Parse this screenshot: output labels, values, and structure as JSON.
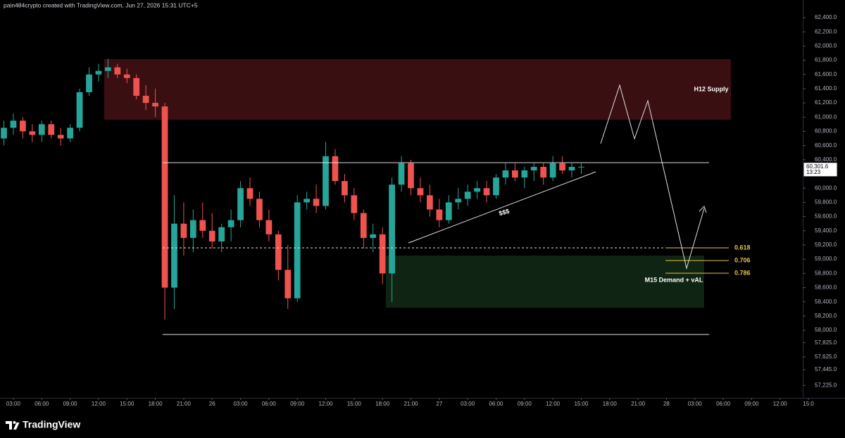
{
  "chart_data": {
    "type": "candlestick",
    "header": "pain484crypto created with TradingView.com, Jun 27, 2026 15:31 UTC+5",
    "brand": "TradingView",
    "up_color": "#26a69a",
    "down_color": "#ef5350",
    "xlim": [
      -1.41,
      83.4
    ],
    "ylim": [
      57049,
      62648
    ],
    "xticks": [
      {
        "value": 0,
        "label": "03:00"
      },
      {
        "value": 3,
        "label": "06:00"
      },
      {
        "value": 6,
        "label": "09:00"
      },
      {
        "value": 9,
        "label": "12:00"
      },
      {
        "value": 12,
        "label": "15:00"
      },
      {
        "value": 15,
        "label": "18:00"
      },
      {
        "value": 18,
        "label": "21:00"
      },
      {
        "value": 21,
        "label": "26"
      },
      {
        "value": 24,
        "label": "03:00"
      },
      {
        "value": 27,
        "label": "06:00"
      },
      {
        "value": 30,
        "label": "09:00"
      },
      {
        "value": 33,
        "label": "12:00"
      },
      {
        "value": 36,
        "label": "15:00"
      },
      {
        "value": 39,
        "label": "18:00"
      },
      {
        "value": 42,
        "label": "21:00"
      },
      {
        "value": 45,
        "label": "27"
      },
      {
        "value": 48,
        "label": "03:00"
      },
      {
        "value": 51,
        "label": "06:00"
      },
      {
        "value": 54,
        "label": "09:00"
      },
      {
        "value": 57,
        "label": "12:00"
      },
      {
        "value": 60,
        "label": "15:00"
      },
      {
        "value": 63,
        "label": "18:00"
      },
      {
        "value": 66,
        "label": "21:00"
      },
      {
        "value": 69,
        "label": "28"
      },
      {
        "value": 72,
        "label": "03:00"
      },
      {
        "value": 75,
        "label": "06:00"
      },
      {
        "value": 78,
        "label": "09:00"
      },
      {
        "value": 81,
        "label": "12:00"
      },
      {
        "value": 84,
        "label": "15:0"
      }
    ],
    "yticks": [
      {
        "value": 62400,
        "label": "62,400.0"
      },
      {
        "value": 62200,
        "label": "62,200.0"
      },
      {
        "value": 62000,
        "label": "62,000.0"
      },
      {
        "value": 61800,
        "label": "61,800.0"
      },
      {
        "value": 61600,
        "label": "61,600.0"
      },
      {
        "value": 61400,
        "label": "61,400.0"
      },
      {
        "value": 61200,
        "label": "61,200.0"
      },
      {
        "value": 61000,
        "label": "61,000.0"
      },
      {
        "value": 60800,
        "label": "60,800.0"
      },
      {
        "value": 60600,
        "label": "60,600.0"
      },
      {
        "value": 60400,
        "label": "60,400.0"
      },
      {
        "value": 60000,
        "label": "60,000.0"
      },
      {
        "value": 59800,
        "label": "59,800.0"
      },
      {
        "value": 59600,
        "label": "59,600.0"
      },
      {
        "value": 59400,
        "label": "59,400.0"
      },
      {
        "value": 59200,
        "label": "59,200.0"
      },
      {
        "value": 59000,
        "label": "59,000.0"
      },
      {
        "value": 58800,
        "label": "58,800.0"
      },
      {
        "value": 58600,
        "label": "58,600.0"
      },
      {
        "value": 58400,
        "label": "58,400.0"
      },
      {
        "value": 58200,
        "label": "58,200.0"
      },
      {
        "value": 58000,
        "label": "58,000.0"
      },
      {
        "value": 57825,
        "label": "57,825.0"
      },
      {
        "value": 57625,
        "label": "57,625.0"
      },
      {
        "value": 57445,
        "label": "57,445.0"
      },
      {
        "value": 57225,
        "label": "57,225.0"
      }
    ],
    "x": [
      -1,
      0,
      1,
      2,
      3,
      4,
      5,
      6,
      7,
      8,
      9,
      10,
      11,
      12,
      13,
      14,
      15,
      16,
      17,
      18,
      19,
      20,
      21,
      22,
      23,
      24,
      25,
      26,
      27,
      28,
      29,
      30,
      31,
      32,
      33,
      34,
      35,
      36,
      37,
      38,
      39,
      40,
      41,
      42,
      43,
      44,
      45,
      46,
      47,
      48,
      49,
      50,
      51,
      52,
      53,
      54,
      55,
      56,
      57,
      58,
      59,
      60
    ],
    "open": [
      60700,
      60850,
      60950,
      60800,
      60750,
      60900,
      60750,
      60700,
      60850,
      61350,
      61600,
      61650,
      61700,
      61600,
      61550,
      61300,
      61200,
      61150,
      58600,
      59500,
      59300,
      59550,
      59400,
      59250,
      59450,
      59550,
      60000,
      59850,
      59550,
      59350,
      58850,
      58450,
      59800,
      59850,
      59750,
      60450,
      60100,
      59900,
      59650,
      59300,
      59350,
      58800,
      60050,
      60350,
      60000,
      59900,
      59700,
      59550,
      59800,
      59850,
      59950,
      60000,
      59900,
      60150,
      60250,
      60150,
      60250,
      60300,
      60150,
      60350,
      60250,
      60300
    ],
    "high": [
      60950,
      61050,
      61000,
      60900,
      60950,
      60950,
      60850,
      60900,
      61400,
      61700,
      61750,
      61820,
      61750,
      61680,
      61600,
      61450,
      61400,
      61200,
      59900,
      59800,
      59700,
      59800,
      59650,
      59500,
      59700,
      60100,
      60150,
      59950,
      59700,
      59400,
      59200,
      59900,
      59950,
      60050,
      60650,
      60550,
      60200,
      60000,
      59700,
      59500,
      59450,
      60150,
      60450,
      60400,
      60150,
      60050,
      59850,
      59900,
      60000,
      60050,
      60100,
      60100,
      60200,
      60350,
      60350,
      60300,
      60350,
      60350,
      60450,
      60450,
      60350,
      60350
    ],
    "low": [
      60600,
      60750,
      60700,
      60650,
      60650,
      60700,
      60600,
      60650,
      60800,
      61300,
      61500,
      61550,
      61550,
      61480,
      61250,
      61100,
      61000,
      58150,
      58300,
      59050,
      59100,
      59300,
      59150,
      59100,
      59250,
      59450,
      59750,
      59450,
      59250,
      58700,
      58300,
      58400,
      59700,
      59650,
      59700,
      60050,
      59800,
      59550,
      59150,
      59100,
      58650,
      58400,
      59950,
      59900,
      59800,
      59600,
      59450,
      59500,
      59700,
      59750,
      59850,
      59800,
      59850,
      60050,
      60100,
      60000,
      60100,
      60050,
      60100,
      60200,
      60150,
      60200
    ],
    "close": [
      60850,
      60950,
      60800,
      60750,
      60900,
      60750,
      60700,
      60850,
      61350,
      61600,
      61650,
      61700,
      61600,
      61550,
      61300,
      61200,
      61150,
      58600,
      59500,
      59300,
      59550,
      59400,
      59250,
      59450,
      59550,
      60000,
      59850,
      59550,
      59350,
      58850,
      58450,
      59800,
      59850,
      59750,
      60450,
      60100,
      59900,
      59650,
      59300,
      59350,
      58800,
      60050,
      60350,
      60000,
      59900,
      59700,
      59550,
      59800,
      59850,
      59950,
      60000,
      59900,
      60150,
      60250,
      60150,
      60250,
      60300,
      60150,
      60350,
      60250,
      60300,
      60301.6
    ],
    "last_price_label": "60,301.6",
    "countdown": "13:23",
    "annotations": {
      "supply": "H12 Supply",
      "demand": "M15 Demand + vAL",
      "liquidity": "$$$",
      "fib": [
        "0.618",
        "0.706",
        "0.786"
      ]
    }
  }
}
